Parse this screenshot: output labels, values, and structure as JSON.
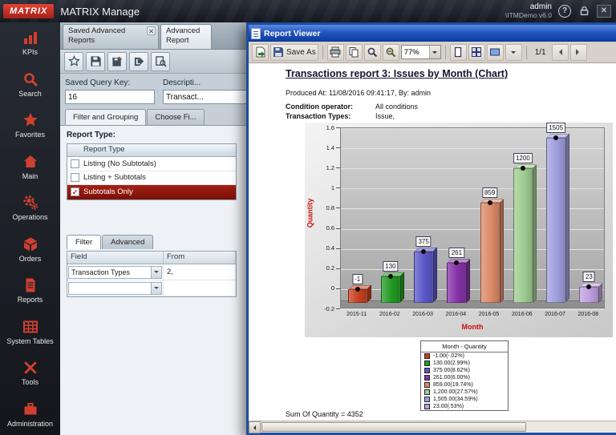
{
  "header": {
    "logo_text": "MATRIX",
    "app_title": "MATRIX Manage",
    "user": "admin",
    "environment": "\\ITMDemo v6.0"
  },
  "sidebar": {
    "items": [
      {
        "id": "kpis",
        "label": "KPIs",
        "icon": "kpi-chart-icon"
      },
      {
        "id": "search",
        "label": "Search",
        "icon": "search-icon"
      },
      {
        "id": "favorites",
        "label": "Favorites",
        "icon": "star-icon"
      },
      {
        "id": "main",
        "label": "Main",
        "icon": "home-icon"
      },
      {
        "id": "operations",
        "label": "Operations",
        "icon": "gears-icon"
      },
      {
        "id": "orders",
        "label": "Orders",
        "icon": "package-icon"
      },
      {
        "id": "reports",
        "label": "Reports",
        "icon": "document-icon"
      },
      {
        "id": "system-tables",
        "label": "System Tables",
        "icon": "table-grid-icon"
      },
      {
        "id": "tools",
        "label": "Tools",
        "icon": "tools-icon"
      },
      {
        "id": "administration",
        "label": "Administration",
        "icon": "briefcase-icon"
      }
    ]
  },
  "workspace": {
    "tabs": [
      {
        "label": "Saved Advanced Reports",
        "closable": true,
        "active": false
      },
      {
        "label": "Advanced Report",
        "closable": false,
        "active": true
      }
    ],
    "query_form": {
      "key_label": "Saved Query Key:",
      "key_value": "16",
      "description_label": "Descripti...",
      "description_value": "Transact..."
    },
    "subtabs": [
      "Filter and Grouping",
      "Choose Fi..."
    ],
    "report_type": {
      "label": "Report Type:",
      "column_header": "Report Type",
      "options": [
        {
          "label": "Listing (No Subtotals)",
          "checked": false,
          "selected": false
        },
        {
          "label": "Listing + Subtotals",
          "checked": false,
          "selected": false
        },
        {
          "label": "Subtotals Only",
          "checked": true,
          "selected": true
        }
      ]
    },
    "filter_tabs": [
      "Filter",
      "Advanced"
    ],
    "filter_table": {
      "headers": [
        "Field",
        "From"
      ],
      "rows": [
        {
          "field": "Transaction Types",
          "from": "2,"
        },
        {
          "field": "",
          "from": ""
        }
      ]
    }
  },
  "report_viewer": {
    "window_title": "Report Viewer",
    "toolbar": {
      "save_as_label": "Save As",
      "zoom_value": "77%",
      "page_indicator": "1/1"
    },
    "document": {
      "title": "Transactions report 3: Issues by Month (Chart)",
      "produced_line": "Produced At: 11/08/2016 09:41:17, By: admin",
      "conditions": [
        {
          "label": "Condition operator:",
          "value": "All conditions"
        },
        {
          "label": "Transaction Types:",
          "value": "Issue,"
        }
      ],
      "sum_line": "Sum Of Quantity = 4352"
    },
    "chart_data": {
      "type": "bar",
      "title": "Transactions report 3: Issues by Month (Chart)",
      "xlabel": "Month",
      "ylabel": "Quantity",
      "ylim": [
        -0.2,
        1.6
      ],
      "value_scale": 0.001,
      "grid": true,
      "legend_position": "bottom-center",
      "y_ticks": [
        "1.6",
        "1.4",
        "1.2",
        "1",
        "0.8",
        "0.6",
        "0.4",
        "0.2",
        "0",
        "-0.2"
      ],
      "categories": [
        "2015-11",
        "2016-02",
        "2016-03",
        "2016-04",
        "2016-05",
        "2016-06",
        "2016-07",
        "2016-08"
      ],
      "values": [
        -1,
        130,
        375,
        261,
        859,
        1200,
        1505,
        23
      ],
      "bar_labels": [
        "-1",
        "130",
        "375",
        "261",
        "859",
        "1200",
        "1505",
        "23"
      ],
      "bar_colors": [
        "#c6401f",
        "#219a21",
        "#5a57c8",
        "#8632a8",
        "#dd8a68",
        "#9fcc92",
        "#9f9fde",
        "#bf9fdf"
      ],
      "legend_title": "Month - Quantity",
      "legend": [
        {
          "label": "-1.00(-.02%)",
          "color": "#c6401f"
        },
        {
          "label": "130.00(2.99%)",
          "color": "#219a21"
        },
        {
          "label": "375.00(8.62%)",
          "color": "#5a57c8"
        },
        {
          "label": "261.00(6.00%)",
          "color": "#8632a8"
        },
        {
          "label": "859.00(19.74%)",
          "color": "#dd8a68"
        },
        {
          "label": "1,200.00(27.57%)",
          "color": "#9fcc92"
        },
        {
          "label": "1,505.00(34.59%)",
          "color": "#9f9fde"
        },
        {
          "label": "23.00(.53%)",
          "color": "#bf9fdf"
        }
      ],
      "sum_of_quantity": 4352
    }
  }
}
